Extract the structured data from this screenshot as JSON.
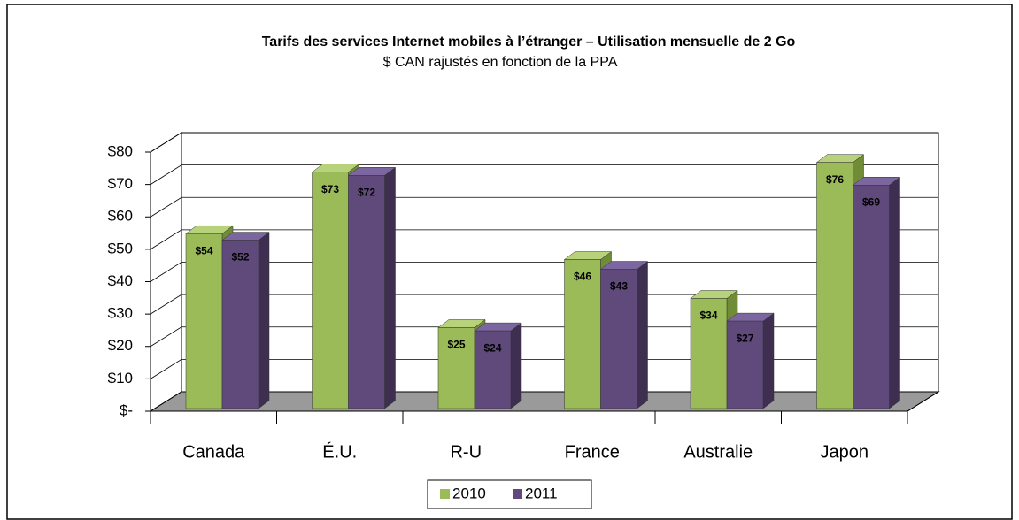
{
  "chart_data": {
    "type": "bar3d",
    "title": "Tarifs des services Internet mobiles à l’étranger – Utilisation mensuelle de 2 Go",
    "subtitle": "$ CAN rajustés en fonction de la PPA",
    "categories": [
      "Canada",
      "É.U.",
      "R-U",
      "France",
      "Australie",
      "Japon"
    ],
    "series": [
      {
        "name": "2010",
        "color": "#9bbb59",
        "values": [
          54,
          73,
          25,
          46,
          34,
          76
        ],
        "value_labels": [
          "$54",
          "$73",
          "$25",
          "$46",
          "$34",
          "$76"
        ]
      },
      {
        "name": "2011",
        "color": "#604a7b",
        "values": [
          52,
          72,
          24,
          43,
          27,
          69
        ],
        "value_labels": [
          "$52",
          "$72",
          "$24",
          "$43",
          "$27",
          "$69"
        ]
      }
    ],
    "ylim": [
      0,
      80
    ],
    "yticks": [
      {
        "value": 0,
        "label": "$-"
      },
      {
        "value": 10,
        "label": "$10"
      },
      {
        "value": 20,
        "label": "$20"
      },
      {
        "value": 30,
        "label": "$30"
      },
      {
        "value": 40,
        "label": "$40"
      },
      {
        "value": 50,
        "label": "$50"
      },
      {
        "value": 60,
        "label": "$60"
      },
      {
        "value": 70,
        "label": "$70"
      },
      {
        "value": 80,
        "label": "$80"
      }
    ],
    "grid": true,
    "legend": "bottom"
  }
}
